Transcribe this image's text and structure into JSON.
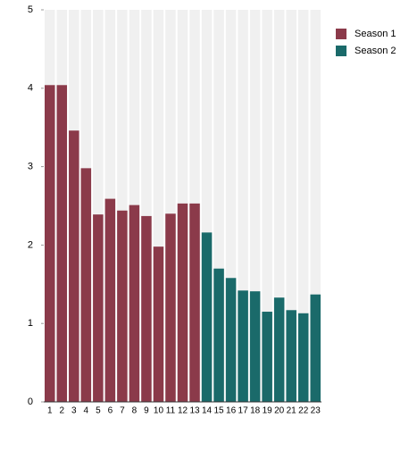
{
  "chart_data": {
    "type": "bar",
    "categories": [
      "1",
      "2",
      "3",
      "4",
      "5",
      "6",
      "7",
      "8",
      "9",
      "10",
      "11",
      "12",
      "13",
      "14",
      "15",
      "16",
      "17",
      "18",
      "19",
      "20",
      "21",
      "22",
      "23"
    ],
    "series": [
      {
        "name": "Season 1",
        "color": "#8b3a4a",
        "values": [
          4.04,
          4.04,
          3.46,
          2.98,
          2.39,
          2.59,
          2.44,
          2.51,
          2.37,
          1.98,
          2.4,
          2.53,
          2.53,
          null,
          null,
          null,
          null,
          null,
          null,
          null,
          null,
          null,
          null
        ]
      },
      {
        "name": "Season 2",
        "color": "#1a6a6a",
        "values": [
          null,
          null,
          null,
          null,
          null,
          null,
          null,
          null,
          null,
          null,
          null,
          null,
          null,
          2.16,
          1.7,
          1.58,
          1.42,
          1.41,
          1.15,
          1.33,
          1.17,
          1.13,
          1.37
        ]
      }
    ],
    "ylim": [
      0,
      5
    ],
    "yticks": [
      0,
      1,
      2,
      3,
      4,
      5
    ],
    "legend": "top-right"
  }
}
